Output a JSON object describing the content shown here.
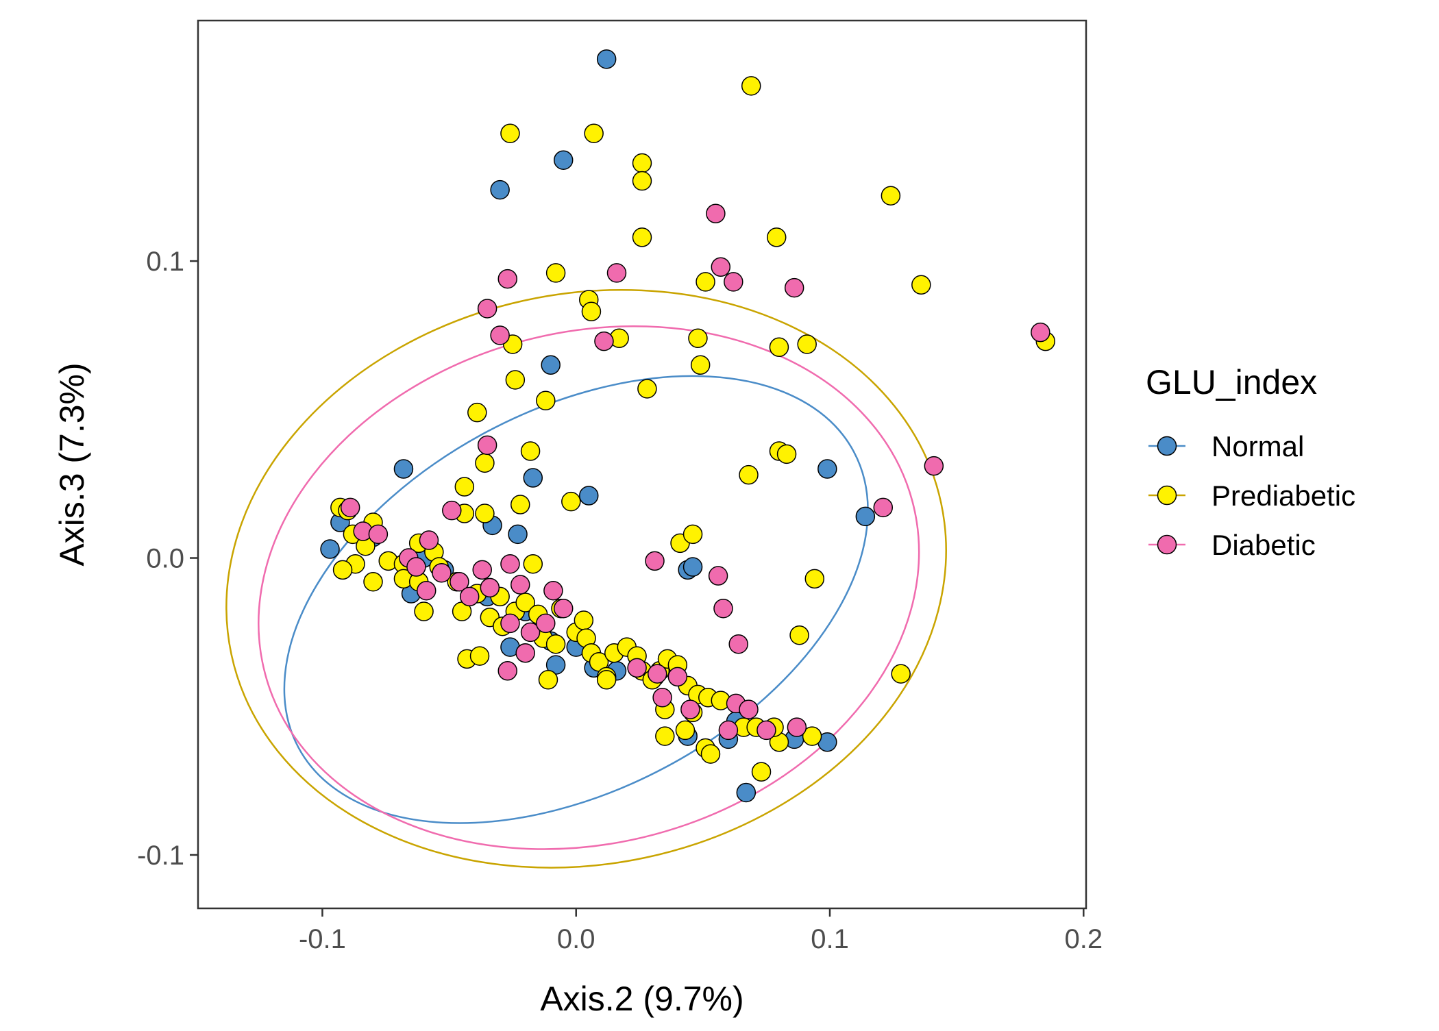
{
  "chart_data": {
    "type": "scatter",
    "xlabel": "Axis.2 (9.7%)",
    "ylabel": "Axis.3 (7.3%)",
    "xlim": [
      -0.149,
      0.201
    ],
    "ylim": [
      -0.118,
      0.181
    ],
    "xticks": [
      -0.1,
      0.0,
      0.1,
      0.2
    ],
    "xtick_labels": [
      "-0.1",
      "0.0",
      "0.1",
      "0.2"
    ],
    "yticks": [
      -0.1,
      0.0,
      0.1
    ],
    "ytick_labels": [
      "-0.1",
      "0.0",
      "0.1"
    ],
    "grid": false,
    "legend": {
      "title": "GLU_index",
      "position": "right",
      "labels": [
        "Normal",
        "Prediabetic",
        "Diabetic"
      ]
    },
    "series": [
      {
        "name": "Normal",
        "fill": "#4A8CC8",
        "line": "#4A8CC8",
        "ellipse": {
          "cx": 0.0,
          "cy": -0.014,
          "rx": 0.124,
          "ry": 0.064,
          "angle_deg": -28
        },
        "points": [
          [
            0.012,
            0.168
          ],
          [
            -0.005,
            0.134
          ],
          [
            -0.03,
            0.124
          ],
          [
            -0.01,
            0.065
          ],
          [
            -0.068,
            0.03
          ],
          [
            -0.017,
            0.027
          ],
          [
            0.005,
            0.021
          ],
          [
            -0.033,
            0.011
          ],
          [
            -0.023,
            0.008
          ],
          [
            0.099,
            0.03
          ],
          [
            0.114,
            0.014
          ],
          [
            -0.097,
            0.003
          ],
          [
            -0.093,
            0.012
          ],
          [
            -0.08,
            0.007
          ],
          [
            -0.065,
            -0.012
          ],
          [
            -0.052,
            -0.004
          ],
          [
            -0.035,
            -0.013
          ],
          [
            -0.02,
            -0.018
          ],
          [
            -0.01,
            -0.028
          ],
          [
            0.0,
            -0.03
          ],
          [
            0.007,
            -0.037
          ],
          [
            -0.008,
            -0.036
          ],
          [
            0.031,
            -0.04
          ],
          [
            0.044,
            -0.004
          ],
          [
            0.046,
            -0.003
          ],
          [
            0.044,
            -0.06
          ],
          [
            0.06,
            -0.061
          ],
          [
            0.063,
            -0.055
          ],
          [
            0.067,
            -0.079
          ],
          [
            0.099,
            -0.062
          ],
          [
            0.086,
            -0.061
          ],
          [
            -0.026,
            -0.03
          ],
          [
            -0.06,
            0.0
          ],
          [
            0.016,
            -0.038
          ]
        ]
      },
      {
        "name": "Prediabetic",
        "fill": "#FFF200",
        "line": "#C9A400",
        "ellipse": {
          "cx": 0.004,
          "cy": -0.007,
          "rx": 0.143,
          "ry": 0.096,
          "angle_deg": -12
        },
        "points": [
          [
            0.069,
            0.159
          ],
          [
            -0.026,
            0.143
          ],
          [
            0.007,
            0.143
          ],
          [
            0.026,
            0.133
          ],
          [
            0.026,
            0.127
          ],
          [
            0.124,
            0.122
          ],
          [
            0.026,
            0.108
          ],
          [
            0.079,
            0.108
          ],
          [
            -0.008,
            0.096
          ],
          [
            0.051,
            0.093
          ],
          [
            0.136,
            0.092
          ],
          [
            0.005,
            0.087
          ],
          [
            0.006,
            0.083
          ],
          [
            0.017,
            0.074
          ],
          [
            -0.025,
            0.072
          ],
          [
            0.048,
            0.074
          ],
          [
            0.08,
            0.071
          ],
          [
            0.091,
            0.072
          ],
          [
            0.185,
            0.073
          ],
          [
            0.049,
            0.065
          ],
          [
            -0.024,
            0.06
          ],
          [
            0.028,
            0.057
          ],
          [
            -0.012,
            0.053
          ],
          [
            -0.039,
            0.049
          ],
          [
            0.08,
            0.036
          ],
          [
            0.083,
            0.035
          ],
          [
            -0.036,
            0.032
          ],
          [
            -0.018,
            0.036
          ],
          [
            0.068,
            0.028
          ],
          [
            -0.044,
            0.024
          ],
          [
            -0.002,
            0.019
          ],
          [
            -0.022,
            0.018
          ],
          [
            -0.044,
            0.015
          ],
          [
            -0.036,
            0.015
          ],
          [
            -0.093,
            0.017
          ],
          [
            -0.09,
            0.016
          ],
          [
            -0.088,
            0.008
          ],
          [
            -0.083,
            0.004
          ],
          [
            -0.08,
            0.012
          ],
          [
            -0.087,
            -0.002
          ],
          [
            -0.092,
            -0.004
          ],
          [
            -0.08,
            -0.008
          ],
          [
            -0.074,
            -0.001
          ],
          [
            -0.068,
            -0.002
          ],
          [
            -0.068,
            -0.007
          ],
          [
            -0.062,
            0.005
          ],
          [
            -0.056,
            0.002
          ],
          [
            -0.054,
            -0.003
          ],
          [
            -0.06,
            -0.018
          ],
          [
            -0.047,
            -0.008
          ],
          [
            -0.045,
            -0.018
          ],
          [
            -0.039,
            -0.012
          ],
          [
            -0.034,
            -0.02
          ],
          [
            -0.03,
            -0.013
          ],
          [
            -0.029,
            -0.023
          ],
          [
            -0.024,
            -0.018
          ],
          [
            -0.02,
            -0.015
          ],
          [
            -0.017,
            -0.002
          ],
          [
            -0.015,
            -0.019
          ],
          [
            -0.013,
            -0.027
          ],
          [
            -0.008,
            -0.029
          ],
          [
            -0.006,
            -0.017
          ],
          [
            0.0,
            -0.025
          ],
          [
            0.003,
            -0.021
          ],
          [
            0.004,
            -0.027
          ],
          [
            0.006,
            -0.032
          ],
          [
            0.009,
            -0.035
          ],
          [
            0.012,
            -0.04
          ],
          [
            0.015,
            -0.032
          ],
          [
            0.02,
            -0.03
          ],
          [
            0.024,
            -0.033
          ],
          [
            0.026,
            -0.038
          ],
          [
            0.03,
            -0.041
          ],
          [
            0.033,
            -0.038
          ],
          [
            0.036,
            -0.034
          ],
          [
            0.04,
            -0.036
          ],
          [
            0.044,
            -0.043
          ],
          [
            0.048,
            -0.046
          ],
          [
            0.052,
            -0.047
          ],
          [
            0.035,
            -0.051
          ],
          [
            0.046,
            -0.052
          ],
          [
            0.043,
            -0.058
          ],
          [
            0.051,
            -0.064
          ],
          [
            0.053,
            -0.066
          ],
          [
            0.057,
            -0.048
          ],
          [
            0.066,
            -0.057
          ],
          [
            0.073,
            -0.072
          ],
          [
            0.08,
            -0.062
          ],
          [
            0.088,
            -0.026
          ],
          [
            0.094,
            -0.007
          ],
          [
            0.093,
            -0.06
          ],
          [
            0.128,
            -0.039
          ],
          [
            -0.011,
            -0.041
          ],
          [
            -0.043,
            -0.034
          ],
          [
            -0.038,
            -0.033
          ],
          [
            0.035,
            -0.06
          ],
          [
            0.041,
            0.005
          ],
          [
            0.046,
            0.008
          ],
          [
            0.012,
            -0.041
          ],
          [
            -0.062,
            -0.008
          ],
          [
            0.071,
            -0.057
          ],
          [
            0.078,
            -0.057
          ]
        ]
      },
      {
        "name": "Diabetic",
        "fill": "#F06BAE",
        "line": "#F06BAE",
        "ellipse": {
          "cx": 0.005,
          "cy": -0.01,
          "rx": 0.132,
          "ry": 0.086,
          "angle_deg": -15
        },
        "points": [
          [
            0.055,
            0.116
          ],
          [
            0.057,
            0.098
          ],
          [
            0.062,
            0.093
          ],
          [
            0.016,
            0.096
          ],
          [
            0.086,
            0.091
          ],
          [
            -0.027,
            0.094
          ],
          [
            -0.035,
            0.084
          ],
          [
            -0.03,
            0.075
          ],
          [
            0.011,
            0.073
          ],
          [
            0.183,
            0.076
          ],
          [
            -0.035,
            0.038
          ],
          [
            0.141,
            0.031
          ],
          [
            0.121,
            0.017
          ],
          [
            -0.049,
            0.016
          ],
          [
            -0.089,
            0.017
          ],
          [
            -0.084,
            0.009
          ],
          [
            -0.078,
            0.008
          ],
          [
            -0.066,
            0.0
          ],
          [
            -0.063,
            -0.003
          ],
          [
            -0.058,
            0.006
          ],
          [
            -0.053,
            -0.005
          ],
          [
            -0.046,
            -0.008
          ],
          [
            -0.042,
            -0.013
          ],
          [
            -0.037,
            -0.004
          ],
          [
            -0.034,
            -0.01
          ],
          [
            -0.026,
            -0.002
          ],
          [
            -0.026,
            -0.022
          ],
          [
            -0.022,
            -0.009
          ],
          [
            -0.018,
            -0.025
          ],
          [
            -0.02,
            -0.032
          ],
          [
            -0.009,
            -0.011
          ],
          [
            -0.012,
            -0.022
          ],
          [
            -0.005,
            -0.017
          ],
          [
            0.031,
            -0.001
          ],
          [
            0.056,
            -0.006
          ],
          [
            0.058,
            -0.017
          ],
          [
            0.064,
            -0.029
          ],
          [
            0.024,
            -0.037
          ],
          [
            0.032,
            -0.039
          ],
          [
            0.034,
            -0.047
          ],
          [
            0.045,
            -0.051
          ],
          [
            0.06,
            -0.058
          ],
          [
            0.063,
            -0.049
          ],
          [
            0.068,
            -0.051
          ],
          [
            0.075,
            -0.058
          ],
          [
            0.087,
            -0.057
          ],
          [
            -0.027,
            -0.038
          ],
          [
            -0.059,
            -0.011
          ],
          [
            0.04,
            -0.04
          ]
        ]
      }
    ]
  }
}
